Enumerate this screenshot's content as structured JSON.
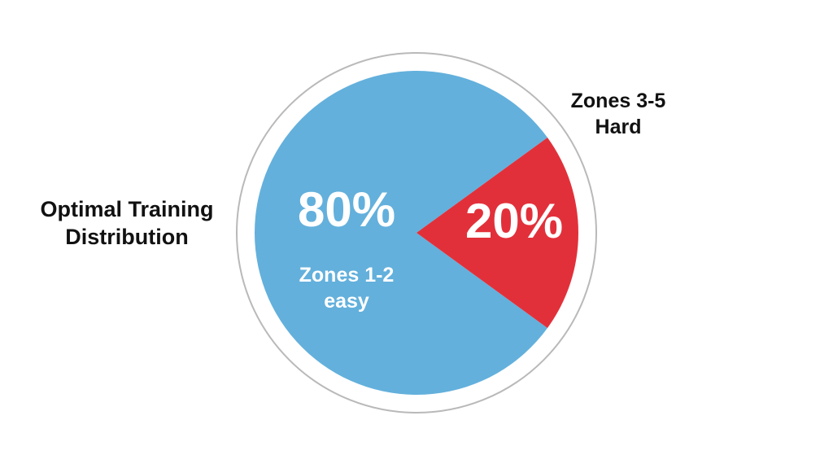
{
  "chart_data": {
    "type": "pie",
    "title_lines": [
      "Optimal Training",
      "Distribution"
    ],
    "slices": [
      {
        "value": 80,
        "value_label": "80%",
        "label_lines": [
          "Zones 1-2",
          "easy"
        ],
        "color": "#63b0dc",
        "label_position": "inside"
      },
      {
        "value": 20,
        "value_label": "20%",
        "label_lines": [
          "Zones 3-5",
          "Hard"
        ],
        "color": "#e2303a",
        "label_position": "outside-top-right"
      }
    ],
    "outline_color": "#b9b9b9",
    "legend": "none"
  }
}
